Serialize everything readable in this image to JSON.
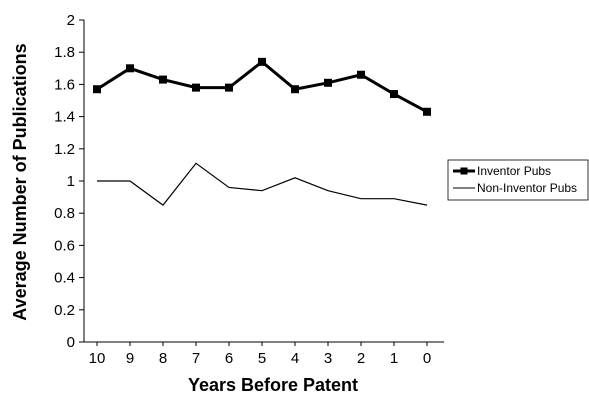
{
  "chart_data": {
    "type": "line",
    "title": "",
    "xlabel": "Years Before Patent",
    "ylabel": "Average Number of Publications",
    "categories": [
      "10",
      "9",
      "8",
      "7",
      "6",
      "5",
      "4",
      "3",
      "2",
      "1",
      "0"
    ],
    "ylim": [
      0,
      2
    ],
    "yticks": [
      "0",
      "0.2",
      "0.4",
      "0.6",
      "0.8",
      "1",
      "1.2",
      "1.4",
      "1.6",
      "1.8",
      "2"
    ],
    "grid": false,
    "legend_position": "right",
    "series": [
      {
        "name": "Inventor Pubs",
        "values": [
          1.57,
          1.7,
          1.63,
          1.58,
          1.58,
          1.74,
          1.57,
          1.61,
          1.66,
          1.54,
          1.43
        ],
        "color": "#000000",
        "style": "thick-line-square-markers"
      },
      {
        "name": "Non-Inventor Pubs",
        "values": [
          1.0,
          1.0,
          0.85,
          1.11,
          0.96,
          0.94,
          1.02,
          0.94,
          0.89,
          0.89,
          0.85
        ],
        "color": "#000000",
        "style": "thin-line"
      }
    ]
  }
}
